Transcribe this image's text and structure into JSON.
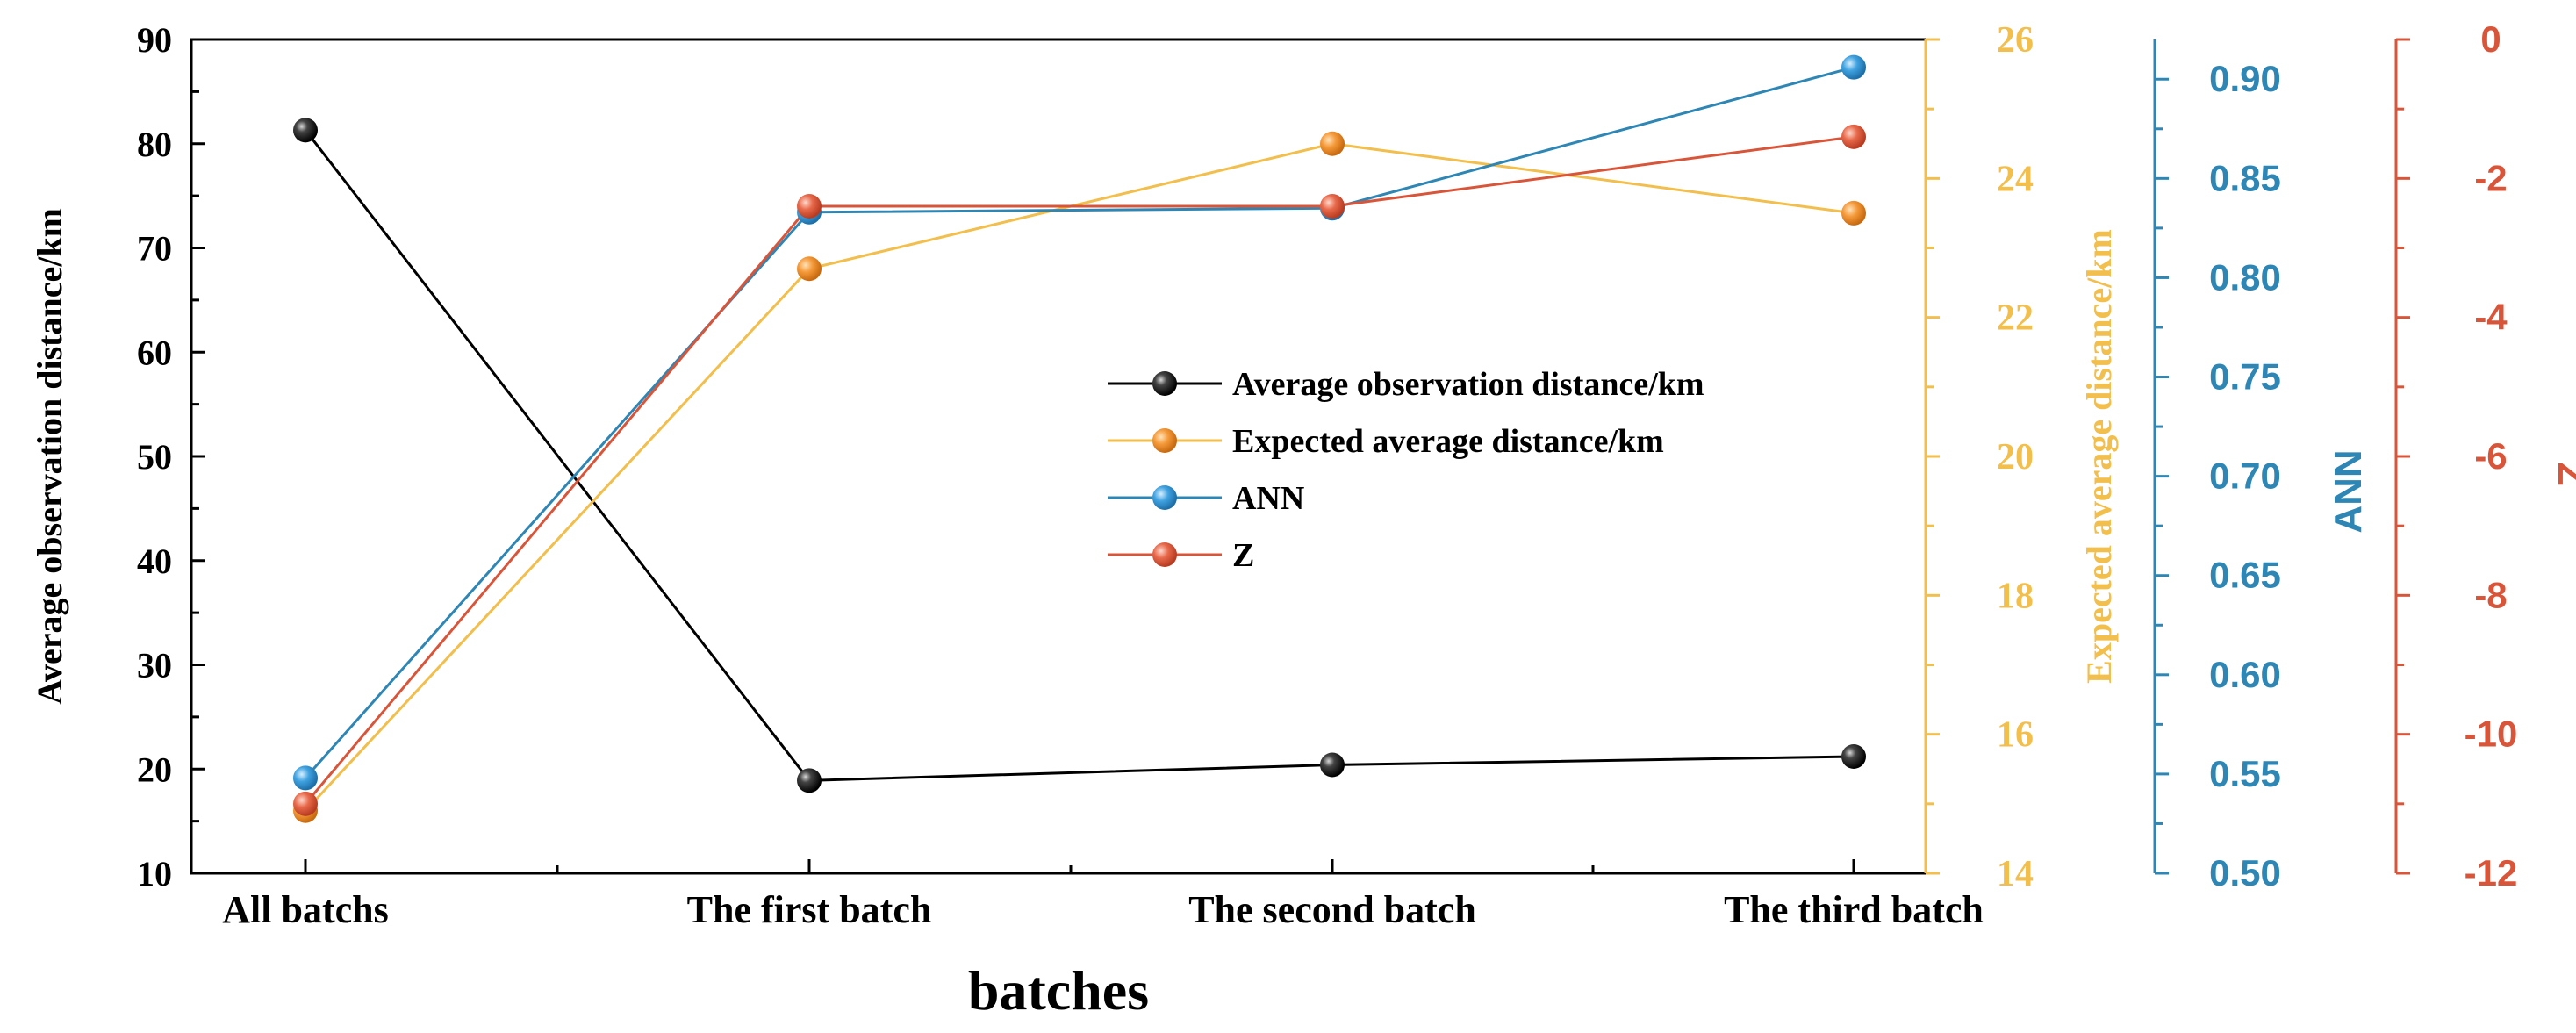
{
  "chart_data": {
    "type": "line",
    "xlabel": "batches",
    "categories": [
      "All batchs",
      "The first batch",
      "The second batch",
      "The third batch"
    ],
    "axes": [
      {
        "id": "left",
        "label": "Average observation distance/km",
        "ylim": [
          10,
          90
        ],
        "ticks": [
          10,
          20,
          30,
          40,
          50,
          60,
          70,
          80,
          90
        ],
        "decimals": 0,
        "color": "#000000"
      },
      {
        "id": "exp",
        "label": "Expected average distance/km",
        "ylim": [
          14,
          26
        ],
        "ticks": [
          14,
          16,
          18,
          20,
          22,
          24,
          26
        ],
        "decimals": 0,
        "color": "#F2BE4C"
      },
      {
        "id": "ann",
        "label": "ANN",
        "ylim": [
          0.5,
          0.92
        ],
        "ticks": [
          0.5,
          0.55,
          0.6,
          0.65,
          0.7,
          0.75,
          0.8,
          0.85,
          0.9
        ],
        "decimals": 2,
        "color": "#2E86B5"
      },
      {
        "id": "z",
        "label": "Z",
        "ylim": [
          -12,
          0
        ],
        "ticks": [
          -12,
          -10,
          -8,
          -6,
          -4,
          -2,
          0
        ],
        "decimals": 0,
        "color": "#D9553A"
      }
    ],
    "series": [
      {
        "name": "Average observation distance/km",
        "axis": "left",
        "color": "#000000",
        "values": [
          81.3,
          18.9,
          20.4,
          21.2
        ]
      },
      {
        "name": "Expected average distance/km",
        "axis": "exp",
        "color": "#F2BE4C",
        "marker_color": "#F28C28",
        "values": [
          14.9,
          22.7,
          24.5,
          23.5
        ]
      },
      {
        "name": "ANN",
        "axis": "ann",
        "color": "#2E86B5",
        "marker_color": "#3A9AD9",
        "values": [
          0.548,
          0.833,
          0.835,
          0.906
        ]
      },
      {
        "name": "Z",
        "axis": "z",
        "color": "#D9553A",
        "marker_color": "#E06644",
        "values": [
          -11.0,
          -2.4,
          -2.4,
          -1.4
        ]
      }
    ],
    "legend_position": "center"
  }
}
